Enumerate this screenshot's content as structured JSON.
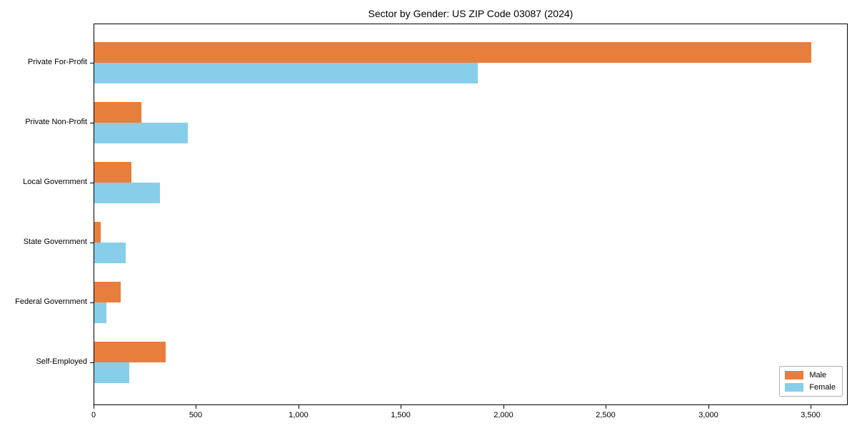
{
  "title": "Sector by Gender: US ZIP Code 03087 (2024)",
  "chart_data": {
    "type": "bar",
    "orientation": "horizontal",
    "title": "Sector by Gender: US ZIP Code 03087 (2024)",
    "categories": [
      "Private For-Profit",
      "Private Non-Profit",
      "Local Government",
      "State Government",
      "Federal Government",
      "Self-Employed"
    ],
    "series": [
      {
        "name": "Male",
        "color": "#E87E3C",
        "values": [
          3500,
          230,
          180,
          30,
          130,
          350
        ]
      },
      {
        "name": "Female",
        "color": "#87CEEB",
        "values": [
          1870,
          455,
          320,
          155,
          60,
          170
        ]
      }
    ],
    "xlabel": "",
    "ylabel": "",
    "xlim": [
      0,
      3680
    ],
    "xticks": [
      0,
      500,
      1000,
      1500,
      2000,
      2500,
      3000,
      3500
    ],
    "xtick_labels": [
      "0",
      "500",
      "1,000",
      "1,500",
      "2,000",
      "2,500",
      "3,000",
      "3,500"
    ],
    "legend_position": "lower right",
    "grid": false
  },
  "legend": {
    "items": [
      {
        "label": "Male",
        "color": "#E87E3C"
      },
      {
        "label": "Female",
        "color": "#87CEEB"
      }
    ]
  }
}
